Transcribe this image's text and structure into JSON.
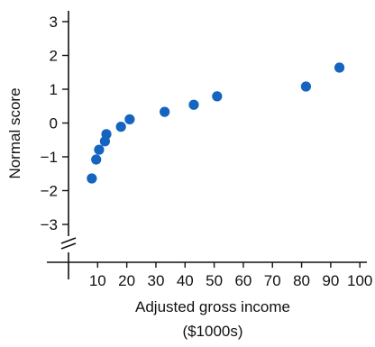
{
  "chart_data": {
    "type": "scatter",
    "title": "",
    "xlabel_line1": "Adjusted gross income",
    "xlabel_line2": "($1000s)",
    "ylabel": "Normal score",
    "x_ticks": [
      10,
      20,
      30,
      40,
      50,
      60,
      70,
      80,
      90,
      100
    ],
    "y_ticks": [
      -3,
      -2,
      -1,
      0,
      1,
      2,
      3
    ],
    "xlim": [
      0,
      100
    ],
    "ylim": [
      -3.5,
      3.5
    ],
    "grid": false,
    "axis_break": true,
    "marker_color": "#1464c0",
    "points": [
      {
        "x": 8,
        "y": -1.64
      },
      {
        "x": 9.5,
        "y": -1.08
      },
      {
        "x": 10.5,
        "y": -0.79
      },
      {
        "x": 12.5,
        "y": -0.54
      },
      {
        "x": 13,
        "y": -0.33
      },
      {
        "x": 18,
        "y": -0.11
      },
      {
        "x": 21,
        "y": 0.11
      },
      {
        "x": 33,
        "y": 0.33
      },
      {
        "x": 43,
        "y": 0.54
      },
      {
        "x": 51,
        "y": 0.79
      },
      {
        "x": 81.5,
        "y": 1.08
      },
      {
        "x": 93,
        "y": 1.64
      }
    ]
  }
}
